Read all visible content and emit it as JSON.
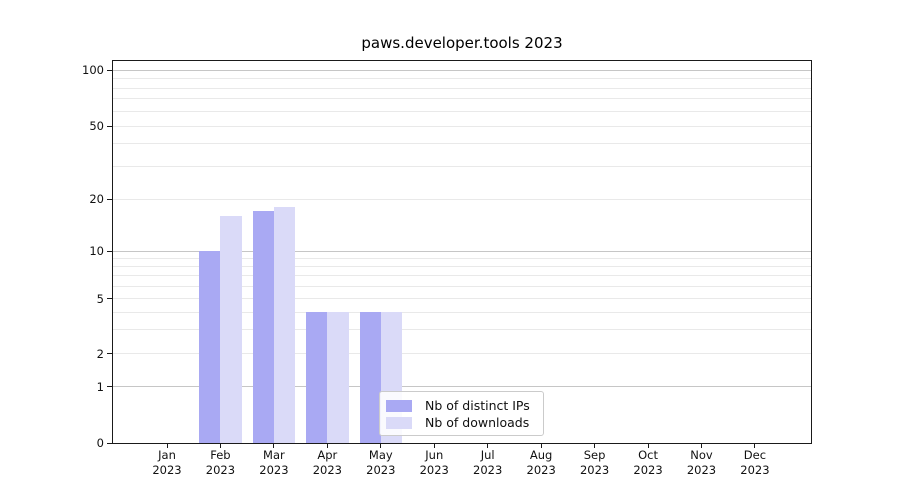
{
  "chart_data": {
    "type": "bar",
    "title": "paws.developer.tools 2023",
    "x_categories": [
      "Jan",
      "Feb",
      "Mar",
      "Apr",
      "May",
      "Jun",
      "Jul",
      "Aug",
      "Sep",
      "Oct",
      "Nov",
      "Dec"
    ],
    "x_year_label": "2023",
    "series": [
      {
        "name": "Nb of distinct IPs",
        "color": "#a9a9f3",
        "values": [
          0,
          10,
          17,
          4,
          4,
          0,
          0,
          0,
          0,
          0,
          0,
          0
        ]
      },
      {
        "name": "Nb of downloads",
        "color": "#dadaf8",
        "values": [
          0,
          16,
          18,
          4,
          4,
          0,
          0,
          0,
          0,
          0,
          0,
          0
        ]
      }
    ],
    "yticks": [
      0,
      1,
      2,
      5,
      10,
      20,
      50,
      100
    ],
    "minor_yticks": [
      3,
      4,
      6,
      7,
      8,
      9,
      30,
      40,
      60,
      70,
      80,
      90
    ],
    "ylim": [
      0,
      110
    ],
    "yscale": "logarithmic above 1, linear 0-1",
    "grid": "horizontal",
    "legend_position": "inside lower-center"
  },
  "colors": {
    "bar_distinct_ips": "#a9a9f3",
    "bar_downloads": "#dadaf8",
    "grid_major": "#c6c6c6",
    "grid_minor": "#e9e9e9",
    "axis_spine": "#1a1a1a",
    "text": "#111111",
    "legend_border": "#cbcbcb",
    "background": "#ffffff"
  }
}
